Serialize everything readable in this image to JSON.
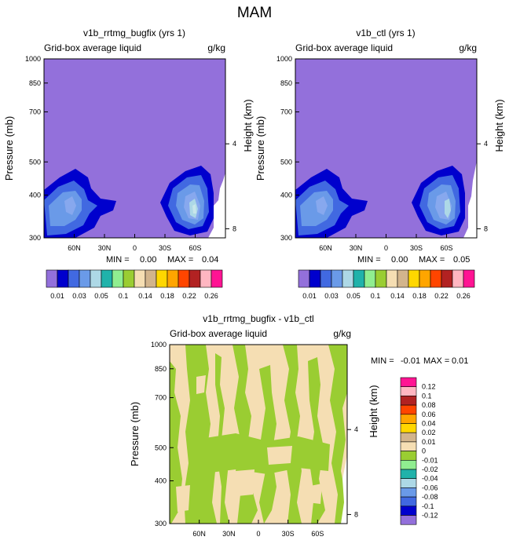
{
  "page_title": "MAM",
  "colors": {
    "background_fill": "#9370DB",
    "stop_fill": "#F5DEB3",
    "diff_green": "#9ACD32"
  },
  "chart_data": [
    {
      "type": "heatmap",
      "title": "v1b_rrtmg_bugfix (yrs 1)",
      "left_label": "Grid-box average liquid",
      "right_label": "g/kg",
      "ylabel": "Pressure (mb)",
      "ylabel_right": "Height (km)",
      "x_ticks": [
        "60N",
        "30N",
        "0",
        "30S",
        "60S"
      ],
      "y_ticks": [
        "300",
        "400",
        "500",
        "700",
        "850",
        "1000"
      ],
      "height_ticks": [
        "8",
        "4"
      ],
      "min_label": "MIN =",
      "min_value": "0.00",
      "max_label": "MAX =",
      "max_value": "0.04"
    },
    {
      "type": "heatmap",
      "title": "v1b_ctl (yrs 1)",
      "left_label": "Grid-box average liquid",
      "right_label": "g/kg",
      "ylabel": "Pressure (mb)",
      "ylabel_right": "Height (km)",
      "x_ticks": [
        "60N",
        "30N",
        "0",
        "30S",
        "60S"
      ],
      "y_ticks": [
        "300",
        "400",
        "500",
        "700",
        "850",
        "1000"
      ],
      "height_ticks": [
        "8",
        "4"
      ],
      "min_label": "MIN =",
      "min_value": "0.00",
      "max_label": "MAX =",
      "max_value": "0.05"
    },
    {
      "type": "heatmap",
      "title": "v1b_rrtmg_bugfix - v1b_ctl",
      "left_label": "Grid-box average liquid",
      "right_label": "g/kg",
      "ylabel": "Pressure (mb)",
      "ylabel_right": "Height (km)",
      "x_ticks": [
        "60N",
        "30N",
        "0",
        "30S",
        "60S"
      ],
      "y_ticks": [
        "300",
        "400",
        "500",
        "700",
        "850",
        "1000"
      ],
      "height_ticks": [
        "8",
        "4"
      ],
      "min_label": "MIN =",
      "min_value": "-0.01",
      "max_label": "MAX =",
      "max_value": "0.01"
    }
  ],
  "colorbar_top": {
    "colors": [
      "#9370DB",
      "#0000CD",
      "#4169E1",
      "#6A9AE8",
      "#ADD8E6",
      "#20B2AA",
      "#90EE90",
      "#9ACD32",
      "#F5DEB3",
      "#D2B48C",
      "#FFD700",
      "#FFA500",
      "#FF4500",
      "#B22222",
      "#FFB6C1",
      "#FF1493"
    ],
    "labels": [
      "0.01",
      "0.03",
      "0.05",
      "0.1",
      "0.14",
      "0.18",
      "0.22",
      "0.26"
    ]
  },
  "colorbar_diff": {
    "colors": [
      "#FF1493",
      "#FFB6C1",
      "#B22222",
      "#FF4500",
      "#FFA500",
      "#FFD700",
      "#D2B48C",
      "#F5DEB3",
      "#9ACD32",
      "#90EE90",
      "#20B2AA",
      "#ADD8E6",
      "#6A9AE8",
      "#4169E1",
      "#0000CD",
      "#9370DB"
    ],
    "labels": [
      "0.12",
      "0.1",
      "0.08",
      "0.06",
      "0.04",
      "0.02",
      "0.01",
      "0",
      "-0.01",
      "-0.02",
      "-0.04",
      "-0.06",
      "-0.08",
      "-0.1",
      "-0.12"
    ]
  }
}
